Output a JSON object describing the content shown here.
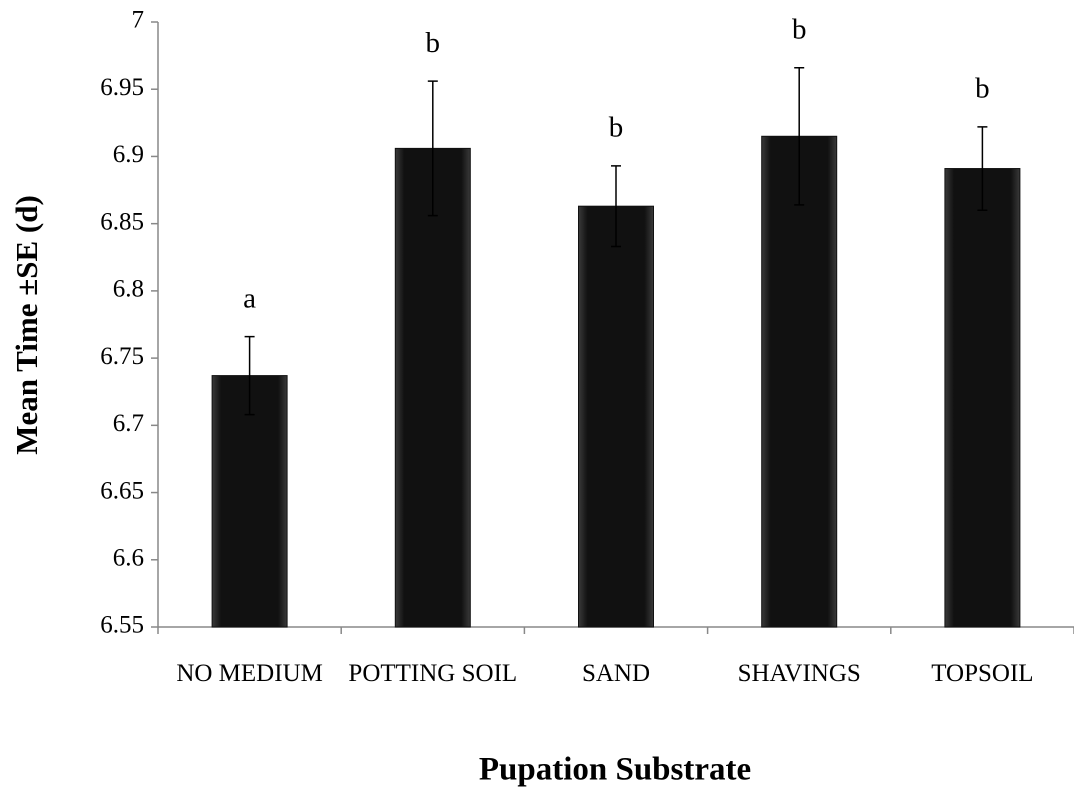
{
  "chart_data": {
    "type": "bar",
    "y_label": "Mean Time ±SE (d)",
    "x_label": "Pupation Substrate",
    "categories": [
      "NO MEDIUM",
      "POTTING SOIL",
      "SAND",
      "SHAVINGS",
      "TOPSOIL"
    ],
    "values": [
      6.737,
      6.906,
      6.863,
      6.915,
      6.891
    ],
    "errors": [
      0.029,
      0.05,
      0.03,
      0.051,
      0.031
    ],
    "annotations": [
      "a",
      "b",
      "b",
      "b",
      "b"
    ],
    "color": "#111111",
    "ylim": [
      6.55,
      7
    ],
    "yticks": [
      6.55,
      6.6,
      6.65,
      6.7,
      6.75,
      6.8,
      6.85,
      6.9,
      6.95,
      7
    ],
    "grid": false
  }
}
